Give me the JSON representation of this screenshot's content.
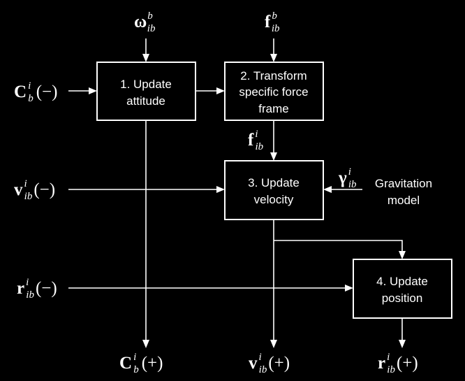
{
  "blocks": {
    "update_attitude": [
      "1. Update",
      "attitude"
    ],
    "transform_force": [
      "2. Transform",
      "specific force",
      "frame"
    ],
    "update_velocity": [
      "3. Update",
      "velocity"
    ],
    "update_position": [
      "4. Update",
      "position"
    ]
  },
  "gravitation_model": [
    "Gravitation",
    "model"
  ],
  "symbols": {
    "omega_in": {
      "base": "ω",
      "sup": "b",
      "sub": "ib"
    },
    "f_in": {
      "base": "f",
      "sup": "b",
      "sub": "ib"
    },
    "f_mid": {
      "base": "f",
      "sup": "i",
      "sub": "ib"
    },
    "gamma": {
      "base": "γ",
      "sup": "i",
      "sub": "ib"
    },
    "C_in": {
      "base": "C",
      "sup": "i",
      "sub": "b",
      "paren": "(−)"
    },
    "v_in": {
      "base": "v",
      "sup": "i",
      "sub": "ib",
      "paren": "(−)"
    },
    "r_in": {
      "base": "r",
      "sup": "i",
      "sub": "ib",
      "paren": "(−)"
    },
    "C_out": {
      "base": "C",
      "sup": "i",
      "sub": "b",
      "paren": "(+)"
    },
    "v_out": {
      "base": "v",
      "sup": "i",
      "sub": "ib",
      "paren": "(+)"
    },
    "r_out": {
      "base": "r",
      "sup": "i",
      "sub": "ib",
      "paren": "(+)"
    }
  }
}
